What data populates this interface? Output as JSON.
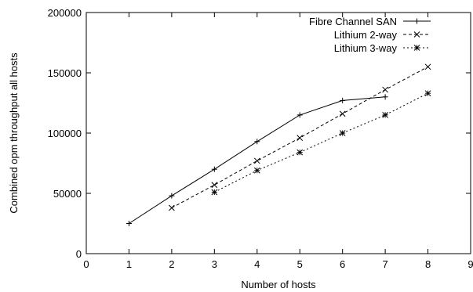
{
  "chart_data": {
    "type": "line",
    "title": "",
    "xlabel": "Number of hosts",
    "ylabel": "Combined opm throughput all hosts",
    "xlim": [
      0,
      9
    ],
    "ylim": [
      0,
      200000
    ],
    "xticks": [
      "0",
      "1",
      "2",
      "3",
      "4",
      "5",
      "6",
      "7",
      "8",
      "9"
    ],
    "yticks": [
      "0",
      "50000",
      "100000",
      "150000",
      "200000"
    ],
    "grid": false,
    "legend_position": "top-right",
    "series": [
      {
        "name": "Fibre Channel SAN",
        "marker": "plus",
        "dash": "solid",
        "color": "#000000",
        "x": [
          1,
          2,
          3,
          4,
          5,
          6,
          7
        ],
        "y": [
          25000,
          48000,
          70000,
          93000,
          115000,
          127000,
          130000
        ]
      },
      {
        "name": "Lithium 2-way",
        "marker": "cross",
        "dash": "dashed",
        "color": "#000000",
        "x": [
          2,
          3,
          4,
          5,
          6,
          7,
          8
        ],
        "y": [
          38000,
          57000,
          77000,
          96000,
          116000,
          136000,
          155000
        ]
      },
      {
        "name": "Lithium 3-way",
        "marker": "star",
        "dash": "dotted",
        "color": "#000000",
        "x": [
          3,
          4,
          5,
          6,
          7,
          8
        ],
        "y": [
          51000,
          69000,
          84000,
          100000,
          115000,
          133000
        ]
      }
    ]
  }
}
